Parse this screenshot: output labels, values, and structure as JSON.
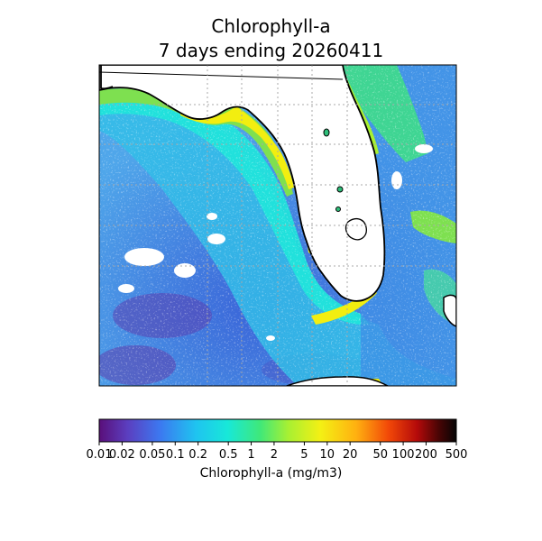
{
  "title": {
    "line1": "Chlorophyll-a",
    "line2": "7 days ending 20260411"
  },
  "colorbar": {
    "label": "Chlorophyll-a (mg/m3)",
    "scale": "log",
    "range": [
      0.01,
      500
    ],
    "colormap": "turbo-like (purple-blue-cyan-green-yellow-red-black)",
    "ticks": [
      "0.01",
      "0.02",
      "0.05",
      "0.1",
      "0.2",
      "0.5",
      "1",
      "2",
      "5",
      "10",
      "20",
      "50",
      "100",
      "200",
      "500"
    ]
  },
  "map": {
    "region": "Florida peninsula, eastern Gulf of Mexico and Atlantic coast",
    "land_color": "#ffffff",
    "coastline_color": "#000000",
    "gridlines": "dotted gray",
    "colors": {
      "deep_purple": "#5a2aa0",
      "offshore_blue": "#3f6fe0",
      "mid_cyan": "#2cc6e8",
      "shelf_cyan": "#1ee8e0",
      "coastal_green": "#5fd86a",
      "nearshore_yellow": "#f2ee10"
    }
  }
}
